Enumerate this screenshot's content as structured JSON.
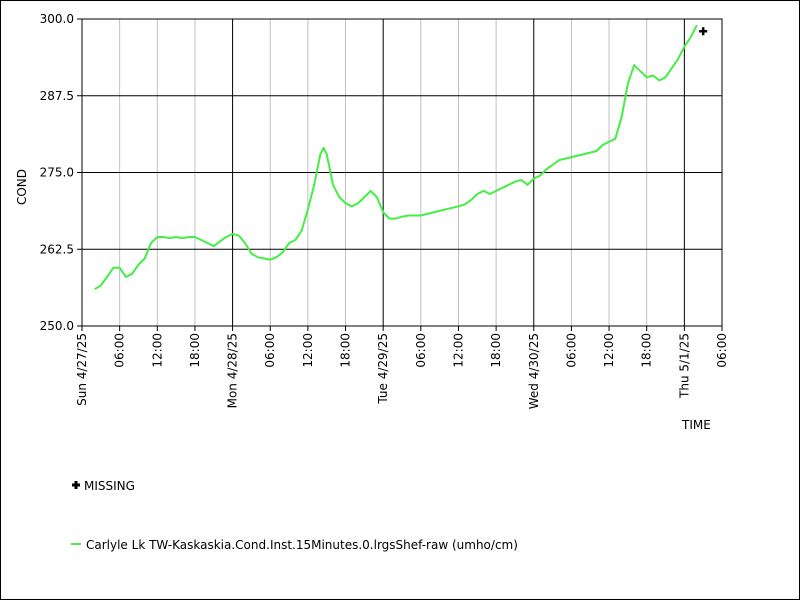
{
  "chart_data": {
    "type": "line",
    "ylabel": "COND",
    "xlabel": "TIME",
    "ylim": [
      250.0,
      300.0
    ],
    "yticks": [
      250.0,
      262.5,
      275.0,
      287.5,
      300.0
    ],
    "ytick_labels": [
      "250.0",
      "262.5",
      "275.0",
      "287.5",
      "300.0"
    ],
    "xlim": [
      "2025-04-27T00:00",
      "2025-05-01T06:00"
    ],
    "xticks": [
      {
        "t": "2025-04-27T00:00",
        "label": "Sun 4/27/25",
        "major": true
      },
      {
        "t": "2025-04-27T06:00",
        "label": "06:00",
        "major": false
      },
      {
        "t": "2025-04-27T12:00",
        "label": "12:00",
        "major": false
      },
      {
        "t": "2025-04-27T18:00",
        "label": "18:00",
        "major": false
      },
      {
        "t": "2025-04-28T00:00",
        "label": "Mon 4/28/25",
        "major": true
      },
      {
        "t": "2025-04-28T06:00",
        "label": "06:00",
        "major": false
      },
      {
        "t": "2025-04-28T12:00",
        "label": "12:00",
        "major": false
      },
      {
        "t": "2025-04-28T18:00",
        "label": "18:00",
        "major": false
      },
      {
        "t": "2025-04-29T00:00",
        "label": "Tue 4/29/25",
        "major": true
      },
      {
        "t": "2025-04-29T06:00",
        "label": "06:00",
        "major": false
      },
      {
        "t": "2025-04-29T12:00",
        "label": "12:00",
        "major": false
      },
      {
        "t": "2025-04-29T18:00",
        "label": "18:00",
        "major": false
      },
      {
        "t": "2025-04-30T00:00",
        "label": "Wed 4/30/25",
        "major": true
      },
      {
        "t": "2025-04-30T06:00",
        "label": "06:00",
        "major": false
      },
      {
        "t": "2025-04-30T12:00",
        "label": "12:00",
        "major": false
      },
      {
        "t": "2025-04-30T18:00",
        "label": "18:00",
        "major": false
      },
      {
        "t": "2025-05-01T00:00",
        "label": "Thu 5/1/25",
        "major": true
      },
      {
        "t": "2025-05-01T06:00",
        "label": "06:00",
        "major": false
      }
    ],
    "grid": true,
    "legend_placement": "bottom-left",
    "series": [
      {
        "name": "Carlyle Lk TW-Kaskaskia.Cond.Inst.15Minutes.0.lrgsShef-raw (umho/cm)",
        "color": "#44ee44",
        "x": [
          "2025-04-27T02:00",
          "2025-04-27T03:00",
          "2025-04-27T04:00",
          "2025-04-27T05:00",
          "2025-04-27T06:00",
          "2025-04-27T07:00",
          "2025-04-27T08:00",
          "2025-04-27T09:00",
          "2025-04-27T10:00",
          "2025-04-27T11:00",
          "2025-04-27T12:00",
          "2025-04-27T13:00",
          "2025-04-27T14:00",
          "2025-04-27T15:00",
          "2025-04-27T16:00",
          "2025-04-27T17:00",
          "2025-04-27T18:00",
          "2025-04-27T19:00",
          "2025-04-27T20:00",
          "2025-04-27T21:00",
          "2025-04-27T22:00",
          "2025-04-27T23:00",
          "2025-04-28T00:00",
          "2025-04-28T01:00",
          "2025-04-28T02:00",
          "2025-04-28T03:00",
          "2025-04-28T04:00",
          "2025-04-28T05:00",
          "2025-04-28T06:00",
          "2025-04-28T07:00",
          "2025-04-28T08:00",
          "2025-04-28T09:00",
          "2025-04-28T10:00",
          "2025-04-28T11:00",
          "2025-04-28T12:00",
          "2025-04-28T13:00",
          "2025-04-28T14:00",
          "2025-04-28T14:30",
          "2025-04-28T15:00",
          "2025-04-28T16:00",
          "2025-04-28T17:00",
          "2025-04-28T18:00",
          "2025-04-28T19:00",
          "2025-04-28T20:00",
          "2025-04-28T21:00",
          "2025-04-28T22:00",
          "2025-04-28T23:00",
          "2025-04-29T00:00",
          "2025-04-29T01:00",
          "2025-04-29T02:00",
          "2025-04-29T03:00",
          "2025-04-29T04:00",
          "2025-04-29T06:00",
          "2025-04-29T08:00",
          "2025-04-29T10:00",
          "2025-04-29T12:00",
          "2025-04-29T13:00",
          "2025-04-29T14:00",
          "2025-04-29T15:00",
          "2025-04-29T16:00",
          "2025-04-29T17:00",
          "2025-04-29T18:00",
          "2025-04-29T19:00",
          "2025-04-29T20:00",
          "2025-04-29T21:00",
          "2025-04-29T22:00",
          "2025-04-29T23:00",
          "2025-04-30T00:00",
          "2025-04-30T01:00",
          "2025-04-30T02:00",
          "2025-04-30T04:00",
          "2025-04-30T06:00",
          "2025-04-30T08:00",
          "2025-04-30T10:00",
          "2025-04-30T11:00",
          "2025-04-30T12:00",
          "2025-04-30T13:00",
          "2025-04-30T14:00",
          "2025-04-30T15:00",
          "2025-04-30T16:00",
          "2025-04-30T17:00",
          "2025-04-30T18:00",
          "2025-04-30T19:00",
          "2025-04-30T20:00",
          "2025-04-30T21:00",
          "2025-04-30T22:00",
          "2025-04-30T23:00",
          "2025-05-01T00:00",
          "2025-05-01T01:00",
          "2025-05-01T02:00"
        ],
        "y": [
          256.0,
          256.6,
          258.0,
          259.5,
          259.5,
          258.0,
          258.5,
          260.0,
          261.0,
          263.5,
          264.5,
          264.5,
          264.3,
          264.5,
          264.3,
          264.5,
          264.5,
          264.0,
          263.5,
          263.0,
          263.8,
          264.5,
          265.0,
          264.7,
          263.5,
          261.8,
          261.2,
          261.0,
          260.8,
          261.2,
          262.0,
          263.5,
          264.0,
          265.5,
          269.0,
          273.0,
          278.0,
          279.0,
          278.0,
          273.0,
          271.0,
          270.0,
          269.5,
          270.0,
          271.0,
          272.0,
          271.0,
          268.5,
          267.5,
          267.5,
          267.8,
          268.0,
          268.0,
          268.5,
          269.0,
          269.5,
          269.8,
          270.5,
          271.5,
          272.0,
          271.5,
          272.0,
          272.5,
          273.0,
          273.5,
          273.8,
          273.0,
          274.0,
          274.5,
          275.5,
          277.0,
          277.5,
          278.0,
          278.5,
          279.5,
          280.0,
          280.5,
          284.0,
          289.5,
          292.5,
          291.5,
          290.5,
          290.8,
          290.0,
          290.5,
          292.0,
          293.5,
          295.5,
          297.0,
          299.0
        ]
      }
    ],
    "missing": {
      "label": "MISSING",
      "points": [
        {
          "x": "2025-05-01T03:00",
          "y": 298.0
        }
      ]
    }
  },
  "legend": {
    "missing_label": "MISSING",
    "series_label": "Carlyle Lk TW-Kaskaskia.Cond.Inst.15Minutes.0.lrgsShef-raw (umho/cm)"
  }
}
